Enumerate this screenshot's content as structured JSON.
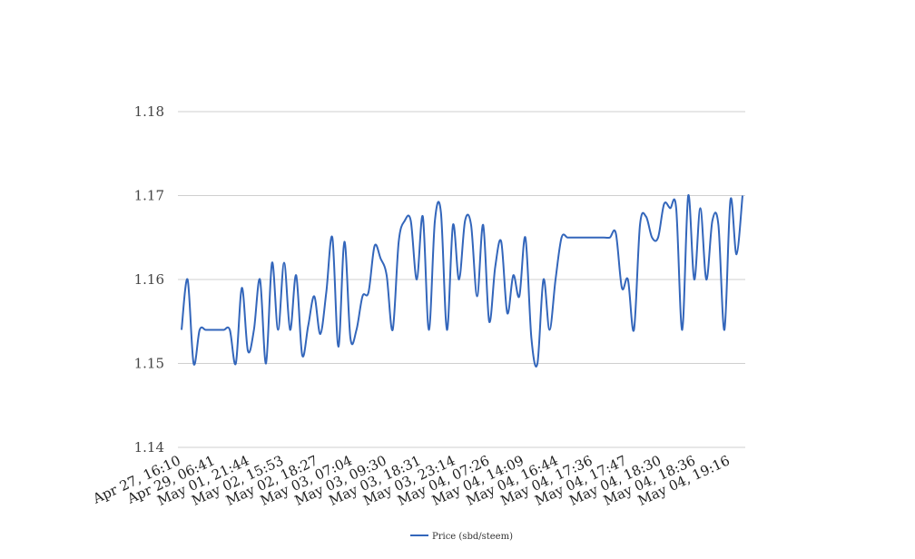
{
  "chart_data": {
    "type": "line",
    "title": "",
    "xlabel": "",
    "ylabel": "",
    "ylim": [
      1.14,
      1.18
    ],
    "y_ticks": [
      "1.14",
      "1.15",
      "1.16",
      "1.17",
      "1.18"
    ],
    "grid": "horizontal",
    "legend_position": "bottom-center",
    "x_tick_labels": [
      "Apr 27, 16:10",
      "Apr 29, 06:41",
      "May 01, 21:44",
      "May 02, 15:53",
      "May 02, 18:27",
      "May 03, 07:04",
      "May 03, 09:30",
      "May 03, 18:31",
      "May 03, 23:14",
      "May 04, 07:26",
      "May 04, 14:09",
      "May 04, 16:44",
      "May 04, 17:36",
      "May 04, 17:47",
      "May 04, 18:30",
      "May 04, 18:36",
      "May 04, 19:16"
    ],
    "series": [
      {
        "name": "Price (sbd/steem)",
        "color": "#3366bb",
        "values": [
          1.154,
          1.16,
          1.15,
          1.154,
          1.154,
          1.154,
          1.154,
          1.154,
          1.154,
          1.15,
          1.159,
          1.1515,
          1.154,
          1.16,
          1.15,
          1.162,
          1.154,
          1.162,
          1.154,
          1.1605,
          1.151,
          1.1545,
          1.158,
          1.1535,
          1.1585,
          1.165,
          1.152,
          1.1645,
          1.153,
          1.154,
          1.158,
          1.1585,
          1.164,
          1.1625,
          1.1605,
          1.154,
          1.1645,
          1.167,
          1.167,
          1.16,
          1.1675,
          1.154,
          1.167,
          1.168,
          1.154,
          1.1665,
          1.16,
          1.167,
          1.1665,
          1.158,
          1.1665,
          1.155,
          1.1615,
          1.1645,
          1.156,
          1.1605,
          1.158,
          1.165,
          1.153,
          1.15,
          1.16,
          1.154,
          1.16,
          1.165,
          1.165,
          1.165,
          1.165,
          1.165,
          1.165,
          1.165,
          1.165,
          1.165,
          1.1655,
          1.159,
          1.16,
          1.154,
          1.1665,
          1.1675,
          1.165,
          1.165,
          1.169,
          1.1685,
          1.1685,
          1.154,
          1.17,
          1.16,
          1.1685,
          1.16,
          1.167,
          1.1665,
          1.154,
          1.1695,
          1.163,
          1.17
        ]
      }
    ]
  }
}
